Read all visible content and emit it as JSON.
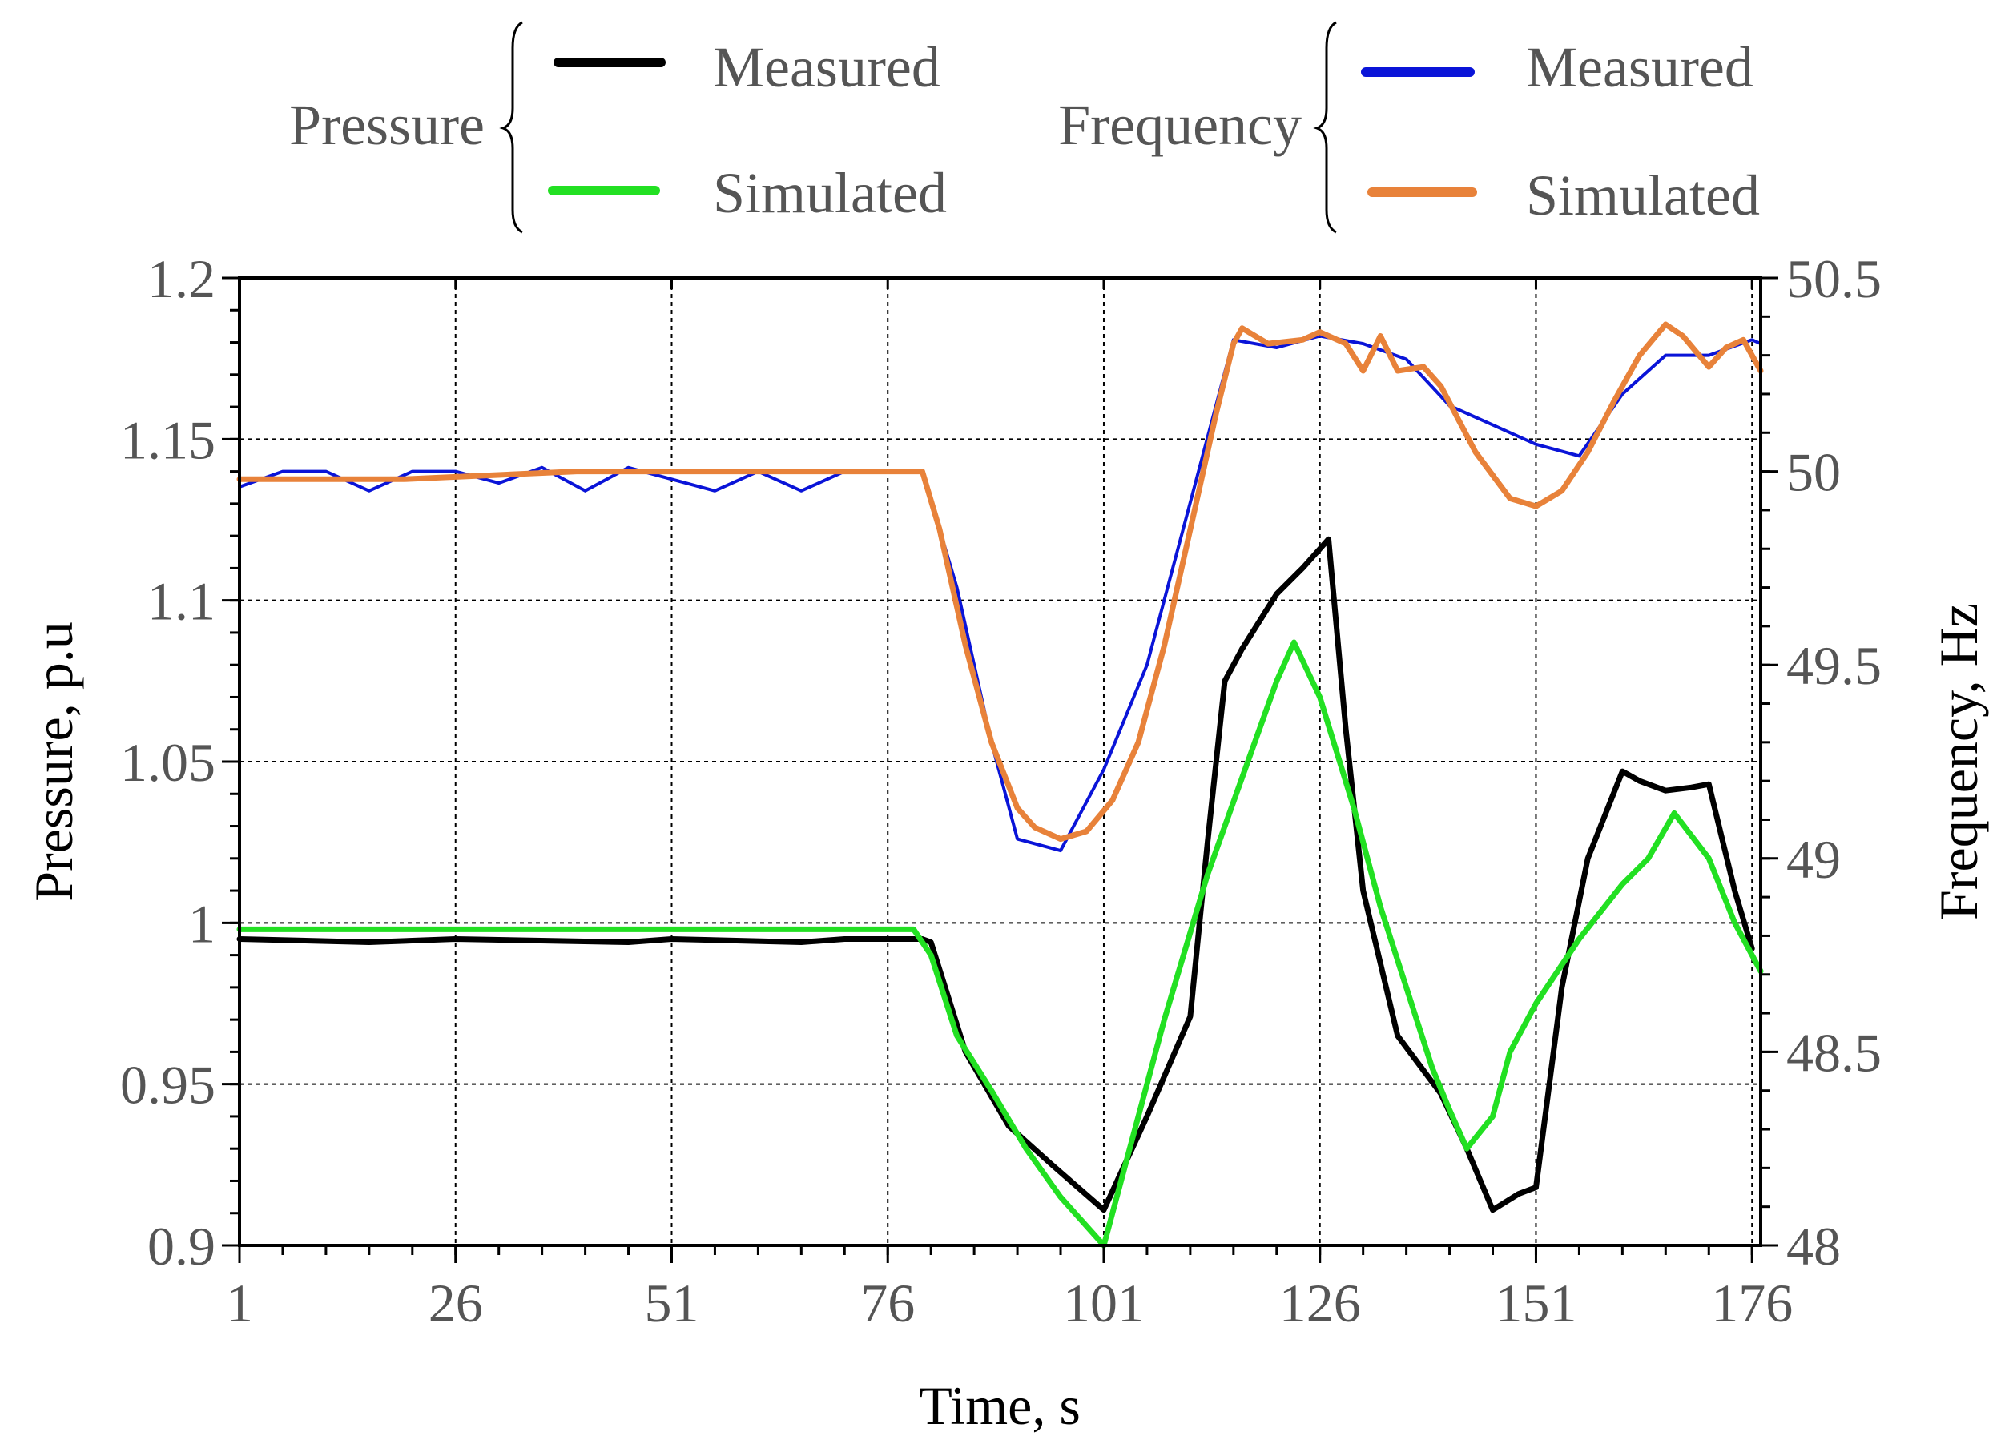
{
  "chart_data": {
    "type": "line",
    "title": "",
    "xlabel": "Time, s",
    "ylabel": "Pressure, p.u",
    "y2label": "Frequency, Hz",
    "xlim": [
      1,
      177
    ],
    "ylim": [
      0.9,
      1.2
    ],
    "y2lim": [
      48,
      50.5
    ],
    "xticks": [
      1,
      26,
      51,
      76,
      101,
      126,
      151,
      176
    ],
    "xtick_labels": [
      "1",
      "26",
      "51",
      "76",
      "101",
      "126",
      "151",
      "176"
    ],
    "yticks": [
      0.9,
      0.95,
      1,
      1.05,
      1.1,
      1.15,
      1.2
    ],
    "ytick_labels": [
      "0.9",
      "0.95",
      "1",
      "1.05",
      "1.1",
      "1.15",
      "1.2"
    ],
    "y2ticks": [
      48,
      48.5,
      49,
      49.5,
      50,
      50.5
    ],
    "y2tick_labels": [
      "48",
      "48.5",
      "49",
      "49.5",
      "50",
      "50.5"
    ],
    "grid": true,
    "legend": {
      "position": "top",
      "groups": [
        {
          "title": "Pressure",
          "entries": [
            "Measured",
            "Simulated"
          ]
        },
        {
          "title": "Frequency",
          "entries": [
            "Measured",
            "Simulated"
          ]
        }
      ]
    },
    "series": [
      {
        "name": "Pressure Measured",
        "group": "Pressure",
        "label": "Measured",
        "axis": "left",
        "color": "#000000",
        "width": 7,
        "points": [
          [
            1,
            0.995
          ],
          [
            16,
            0.994
          ],
          [
            26,
            0.995
          ],
          [
            46,
            0.994
          ],
          [
            51,
            0.995
          ],
          [
            66,
            0.994
          ],
          [
            71,
            0.995
          ],
          [
            80,
            0.995
          ],
          [
            81,
            0.994
          ],
          [
            85,
            0.96
          ],
          [
            90,
            0.937
          ],
          [
            95,
            0.925
          ],
          [
            101,
            0.911
          ],
          [
            106,
            0.94
          ],
          [
            111,
            0.971
          ],
          [
            113,
            1.025
          ],
          [
            115,
            1.075
          ],
          [
            117,
            1.085
          ],
          [
            121,
            1.102
          ],
          [
            124,
            1.11
          ],
          [
            127,
            1.119
          ],
          [
            129,
            1.06
          ],
          [
            131,
            1.01
          ],
          [
            135,
            0.965
          ],
          [
            140,
            0.947
          ],
          [
            143,
            0.93
          ],
          [
            146,
            0.911
          ],
          [
            149,
            0.916
          ],
          [
            151,
            0.918
          ],
          [
            154,
            0.98
          ],
          [
            157,
            1.02
          ],
          [
            161,
            1.047
          ],
          [
            163,
            1.044
          ],
          [
            166,
            1.041
          ],
          [
            169,
            1.042
          ],
          [
            171,
            1.043
          ],
          [
            174,
            1.01
          ],
          [
            176,
            0.992
          ]
        ]
      },
      {
        "name": "Pressure Simulated",
        "group": "Pressure",
        "label": "Simulated",
        "axis": "left",
        "color": "#22e022",
        "width": 7,
        "points": [
          [
            1,
            0.998
          ],
          [
            30,
            0.998
          ],
          [
            50,
            0.998
          ],
          [
            79,
            0.998
          ],
          [
            81,
            0.99
          ],
          [
            84,
            0.965
          ],
          [
            88,
            0.948
          ],
          [
            92,
            0.93
          ],
          [
            96,
            0.915
          ],
          [
            101,
            0.9
          ],
          [
            104,
            0.93
          ],
          [
            108,
            0.97
          ],
          [
            113,
            1.015
          ],
          [
            117,
            1.045
          ],
          [
            121,
            1.075
          ],
          [
            123,
            1.087
          ],
          [
            126,
            1.07
          ],
          [
            130,
            1.035
          ],
          [
            133,
            1.005
          ],
          [
            136,
            0.98
          ],
          [
            139,
            0.955
          ],
          [
            141,
            0.942
          ],
          [
            143,
            0.93
          ],
          [
            146,
            0.94
          ],
          [
            148,
            0.96
          ],
          [
            151,
            0.975
          ],
          [
            156,
            0.995
          ],
          [
            161,
            1.012
          ],
          [
            164,
            1.02
          ],
          [
            167,
            1.034
          ],
          [
            171,
            1.02
          ],
          [
            174,
            1.0
          ],
          [
            177,
            0.985
          ]
        ]
      },
      {
        "name": "Frequency Measured",
        "group": "Frequency",
        "label": "Measured",
        "axis": "right",
        "color": "#0a14d8",
        "width": 4,
        "points": [
          [
            1,
            49.96
          ],
          [
            6,
            50.0
          ],
          [
            11,
            50.0
          ],
          [
            16,
            49.95
          ],
          [
            21,
            50.0
          ],
          [
            26,
            50.0
          ],
          [
            31,
            49.97
          ],
          [
            36,
            50.01
          ],
          [
            41,
            49.95
          ],
          [
            46,
            50.01
          ],
          [
            51,
            49.98
          ],
          [
            56,
            49.95
          ],
          [
            61,
            50.0
          ],
          [
            66,
            49.95
          ],
          [
            71,
            50.0
          ],
          [
            80,
            50.0
          ],
          [
            84,
            49.7
          ],
          [
            88,
            49.3
          ],
          [
            91,
            49.05
          ],
          [
            96,
            49.02
          ],
          [
            101,
            49.23
          ],
          [
            106,
            49.5
          ],
          [
            111,
            49.92
          ],
          [
            116,
            50.34
          ],
          [
            121,
            50.32
          ],
          [
            126,
            50.35
          ],
          [
            131,
            50.33
          ],
          [
            136,
            50.29
          ],
          [
            141,
            50.17
          ],
          [
            146,
            50.12
          ],
          [
            151,
            50.07
          ],
          [
            156,
            50.04
          ],
          [
            161,
            50.2
          ],
          [
            166,
            50.3
          ],
          [
            171,
            50.3
          ],
          [
            176,
            50.34
          ],
          [
            177,
            50.33
          ]
        ]
      },
      {
        "name": "Frequency Simulated",
        "group": "Frequency",
        "label": "Simulated",
        "axis": "right",
        "color": "#e8823a",
        "width": 7,
        "points": [
          [
            1,
            49.98
          ],
          [
            20,
            49.98
          ],
          [
            40,
            50.0
          ],
          [
            60,
            50.0
          ],
          [
            80,
            50.0
          ],
          [
            82,
            49.85
          ],
          [
            85,
            49.55
          ],
          [
            88,
            49.3
          ],
          [
            91,
            49.13
          ],
          [
            93,
            49.08
          ],
          [
            96,
            49.05
          ],
          [
            99,
            49.07
          ],
          [
            102,
            49.15
          ],
          [
            105,
            49.3
          ],
          [
            108,
            49.55
          ],
          [
            111,
            49.85
          ],
          [
            114,
            50.15
          ],
          [
            116,
            50.33
          ],
          [
            117,
            50.37
          ],
          [
            120,
            50.33
          ],
          [
            124,
            50.34
          ],
          [
            126,
            50.36
          ],
          [
            129,
            50.33
          ],
          [
            131,
            50.26
          ],
          [
            133,
            50.35
          ],
          [
            135,
            50.26
          ],
          [
            138,
            50.27
          ],
          [
            140,
            50.22
          ],
          [
            144,
            50.05
          ],
          [
            148,
            49.93
          ],
          [
            151,
            49.91
          ],
          [
            154,
            49.95
          ],
          [
            157,
            50.05
          ],
          [
            160,
            50.18
          ],
          [
            163,
            50.3
          ],
          [
            166,
            50.38
          ],
          [
            168,
            50.35
          ],
          [
            171,
            50.27
          ],
          [
            173,
            50.32
          ],
          [
            175,
            50.34
          ],
          [
            177,
            50.26
          ]
        ]
      }
    ]
  }
}
